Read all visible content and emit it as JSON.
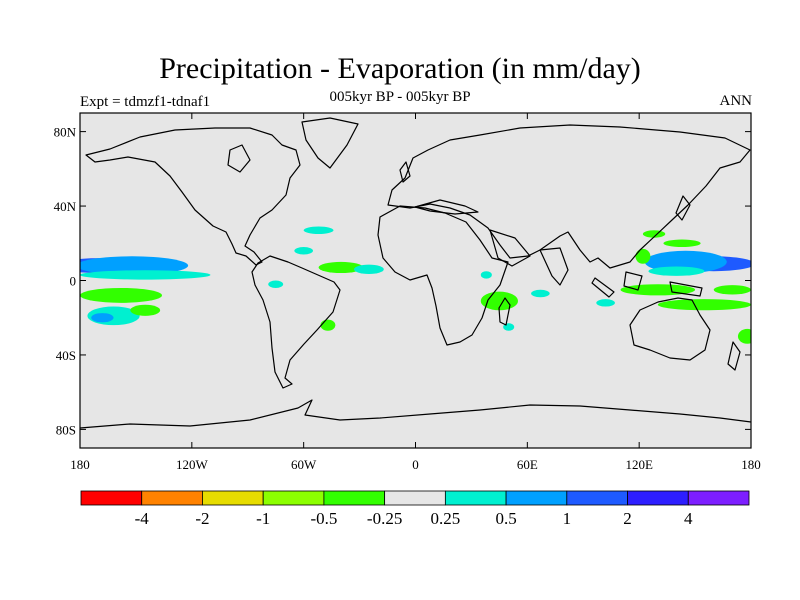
{
  "header": {
    "title": "Precipitation - Evaporation (in mm/day)",
    "subtitle": "005kyr BP - 005kyr BP",
    "left_label": "Expt = tdmzf1-tdnaf1",
    "right_label": "ANN"
  },
  "map": {
    "projection": "cylindrical equidistant",
    "lon_range": [
      -180,
      180
    ],
    "lat_range": [
      -90,
      90
    ],
    "ocean_color": "#e6e6e6",
    "coast_color": "#000000",
    "y_ticks": [
      {
        "lat": 80,
        "label": "80N"
      },
      {
        "lat": 40,
        "label": "40N"
      },
      {
        "lat": 0,
        "label": "0"
      },
      {
        "lat": -40,
        "label": "40S"
      },
      {
        "lat": -80,
        "label": "80S"
      }
    ],
    "x_ticks": [
      {
        "lon": -180,
        "label": "180"
      },
      {
        "lon": -120,
        "label": "120W"
      },
      {
        "lon": -60,
        "label": "60W"
      },
      {
        "lon": 0,
        "label": "0"
      },
      {
        "lon": 60,
        "label": "60E"
      },
      {
        "lon": 120,
        "label": "120E"
      },
      {
        "lon": 180,
        "label": "180"
      }
    ],
    "anomaly_patches": [
      {
        "lon": -170,
        "lat": 8,
        "rlon": 22,
        "rlat": 4,
        "color": "#1e5aff"
      },
      {
        "lon": -152,
        "lat": 8,
        "rlon": 30,
        "rlat": 5,
        "color": "#00a0ff"
      },
      {
        "lon": -145,
        "lat": 3,
        "rlon": 35,
        "rlat": 2.5,
        "color": "#00f0d0"
      },
      {
        "lon": -158,
        "lat": -8,
        "rlon": 22,
        "rlat": 4,
        "color": "#32ff00"
      },
      {
        "lon": -162,
        "lat": -19,
        "rlon": 14,
        "rlat": 5,
        "color": "#00f0d0"
      },
      {
        "lon": -168,
        "lat": -20,
        "rlon": 6,
        "rlat": 2.5,
        "color": "#00a0ff"
      },
      {
        "lon": -145,
        "lat": -16,
        "rlon": 8,
        "rlat": 3,
        "color": "#32ff00"
      },
      {
        "lon": -40,
        "lat": 7,
        "rlon": 12,
        "rlat": 3,
        "color": "#32ff00"
      },
      {
        "lon": -25,
        "lat": 6,
        "rlon": 8,
        "rlat": 2.5,
        "color": "#00f0d0"
      },
      {
        "lon": -52,
        "lat": 27,
        "rlon": 8,
        "rlat": 2,
        "color": "#00f0d0"
      },
      {
        "lon": -60,
        "lat": 16,
        "rlon": 5,
        "rlat": 2,
        "color": "#00f0d0"
      },
      {
        "lon": -47,
        "lat": -24,
        "rlon": 4,
        "rlat": 3,
        "color": "#32ff00"
      },
      {
        "lon": -75,
        "lat": -2,
        "rlon": 4,
        "rlat": 2,
        "color": "#00f0d0"
      },
      {
        "lon": 45,
        "lat": -11,
        "rlon": 10,
        "rlat": 5,
        "color": "#32ff00"
      },
      {
        "lon": 38,
        "lat": 3,
        "rlon": 3,
        "rlat": 2,
        "color": "#00f0d0"
      },
      {
        "lon": 67,
        "lat": -7,
        "rlon": 5,
        "rlat": 2,
        "color": "#00f0d0"
      },
      {
        "lon": 50,
        "lat": -25,
        "rlon": 3,
        "rlat": 2,
        "color": "#00f0d0"
      },
      {
        "lon": 102,
        "lat": -12,
        "rlon": 5,
        "rlat": 2,
        "color": "#00f0d0"
      },
      {
        "lon": 160,
        "lat": 9,
        "rlon": 22,
        "rlat": 4,
        "color": "#1e5aff"
      },
      {
        "lon": 145,
        "lat": 10,
        "rlon": 22,
        "rlat": 6,
        "color": "#00a0ff"
      },
      {
        "lon": 140,
        "lat": 5,
        "rlon": 15,
        "rlat": 2.5,
        "color": "#00f0d0"
      },
      {
        "lon": 143,
        "lat": 20,
        "rlon": 10,
        "rlat": 2,
        "color": "#32ff00"
      },
      {
        "lon": 130,
        "lat": -5,
        "rlon": 20,
        "rlat": 3,
        "color": "#32ff00"
      },
      {
        "lon": 155,
        "lat": -13,
        "rlon": 25,
        "rlat": 3,
        "color": "#32ff00"
      },
      {
        "lon": 170,
        "lat": -5,
        "rlon": 10,
        "rlat": 2.5,
        "color": "#32ff00"
      },
      {
        "lon": 178,
        "lat": -30,
        "rlon": 5,
        "rlat": 4,
        "color": "#32ff00"
      },
      {
        "lon": 122,
        "lat": 13,
        "rlon": 4,
        "rlat": 4,
        "color": "#32ff00"
      },
      {
        "lon": 128,
        "lat": 25,
        "rlon": 6,
        "rlat": 2,
        "color": "#32ff00"
      }
    ]
  },
  "colorbar": {
    "colors": [
      "#ff0000",
      "#ff8200",
      "#e6dc00",
      "#8cff00",
      "#32ff00",
      "#e6e6e6",
      "#00f0d0",
      "#00a0ff",
      "#1e5aff",
      "#2d1eff",
      "#7d1eff"
    ],
    "labels": [
      "-4",
      "-2",
      "-1",
      "-0.5",
      "-0.25",
      "0.25",
      "0.5",
      "1",
      "2",
      "4"
    ]
  }
}
